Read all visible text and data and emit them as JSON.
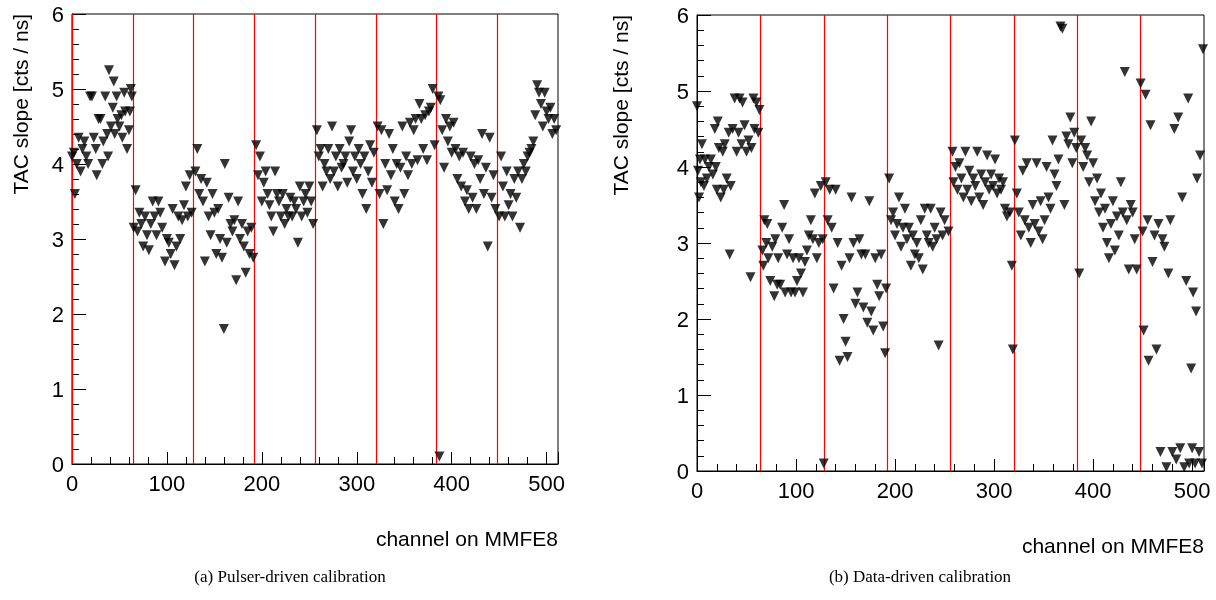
{
  "chart_data": [
    {
      "type": "scatter",
      "xlabel": "channel on MMFE8",
      "ylabel": "TAC slope [cts / ns]",
      "annotations": [
        "(a) Pulser-driven calibration"
      ],
      "color": "#000000",
      "marker": "triangle",
      "xlim": [
        0,
        512
      ],
      "ylim": [
        0,
        6
      ],
      "xticks": [
        0,
        100,
        200,
        300,
        400,
        500
      ],
      "yticks": [
        0,
        1,
        2,
        3,
        4,
        5,
        6
      ],
      "ref_lines": [
        {
          "axis": "x",
          "value": 0,
          "color": "#ff0000"
        },
        {
          "axis": "x",
          "value": 64,
          "color": "#ff0000"
        },
        {
          "axis": "x",
          "value": 128,
          "color": "#ff0000"
        },
        {
          "axis": "x",
          "value": 192,
          "color": "#ff0000"
        },
        {
          "axis": "x",
          "value": 256,
          "color": "#ff0000"
        },
        {
          "axis": "x",
          "value": 320,
          "color": "#ff0000"
        },
        {
          "axis": "x",
          "value": 384,
          "color": "#ff0000"
        },
        {
          "axis": "x",
          "value": 448,
          "color": "#ff0000"
        }
      ],
      "x": [
        0,
        2,
        3,
        5,
        7,
        9,
        11,
        13,
        15,
        17,
        19,
        21,
        23,
        25,
        26,
        28,
        30,
        32,
        33,
        35,
        37,
        38,
        39,
        41,
        43,
        44,
        45,
        47,
        48,
        50,
        52,
        53,
        55,
        56,
        58,
        60,
        61,
        62,
        63,
        65,
        67,
        69,
        71,
        73,
        75,
        77,
        79,
        81,
        83,
        85,
        87,
        89,
        91,
        93,
        95,
        98,
        100,
        102,
        104,
        106,
        108,
        110,
        112,
        114,
        116,
        118,
        120,
        122,
        124,
        126,
        130,
        132,
        134,
        136,
        138,
        140,
        142,
        144,
        146,
        148,
        150,
        152,
        154,
        156,
        158,
        160,
        161,
        163,
        165,
        167,
        169,
        171,
        173,
        175,
        177,
        179,
        181,
        183,
        185,
        187,
        189,
        191,
        194,
        196,
        198,
        200,
        202,
        204,
        206,
        208,
        210,
        212,
        214,
        216,
        218,
        220,
        222,
        224,
        226,
        228,
        230,
        232,
        234,
        236,
        238,
        240,
        242,
        244,
        246,
        248,
        250,
        252,
        254,
        258,
        260,
        262,
        264,
        266,
        268,
        270,
        272,
        274,
        276,
        278,
        280,
        282,
        284,
        286,
        288,
        290,
        292,
        294,
        296,
        298,
        300,
        302,
        304,
        306,
        308,
        310,
        312,
        314,
        316,
        318,
        322,
        324,
        326,
        328,
        330,
        332,
        334,
        336,
        338,
        340,
        342,
        344,
        346,
        348,
        350,
        352,
        354,
        356,
        358,
        360,
        362,
        364,
        366,
        368,
        370,
        372,
        374,
        376,
        378,
        380,
        382,
        386,
        387,
        388,
        390,
        392,
        394,
        396,
        398,
        400,
        402,
        404,
        406,
        408,
        410,
        412,
        414,
        416,
        418,
        420,
        422,
        424,
        426,
        428,
        430,
        432,
        434,
        436,
        438,
        440,
        442,
        444,
        446,
        450,
        452,
        454,
        456,
        458,
        460,
        462,
        464,
        466,
        468,
        470,
        472,
        474,
        476,
        478,
        480,
        482,
        484,
        486,
        488,
        490,
        492,
        494,
        496,
        498,
        500,
        502,
        504,
        506,
        508,
        510
      ],
      "values": [
        4.1,
        4.15,
        3.6,
        4.0,
        4.35,
        3.9,
        4.2,
        4.3,
        4.1,
        4.0,
        4.9,
        4.9,
        4.35,
        4.2,
        3.85,
        4.6,
        4.6,
        4.0,
        4.3,
        4.9,
        4.4,
        4.1,
        5.25,
        4.5,
        4.75,
        5.1,
        4.4,
        4.9,
        4.6,
        4.5,
        4.65,
        4.35,
        4.95,
        4.7,
        4.2,
        4.45,
        4.7,
        5.0,
        4.9,
        3.15,
        3.65,
        3.1,
        3.35,
        3.2,
        2.9,
        3.3,
        3.05,
        2.85,
        3.2,
        3.5,
        3.3,
        3.05,
        3.5,
        3.35,
        3.15,
        2.7,
        3.0,
        2.95,
        2.8,
        3.4,
        2.65,
        2.9,
        3.3,
        3.0,
        3.25,
        3.45,
        3.7,
        3.3,
        3.85,
        3.35,
        3.9,
        4.2,
        3.6,
        3.8,
        3.5,
        2.7,
        3.75,
        3.3,
        3.05,
        3.6,
        3.35,
        2.8,
        3.4,
        3.0,
        2.75,
        1.8,
        4.0,
        2.95,
        3.55,
        3.2,
        3.1,
        3.25,
        2.45,
        3.5,
        3.0,
        3.2,
        2.9,
        2.55,
        3.1,
        2.8,
        3.15,
        2.75,
        4.25,
        3.85,
        4.1,
        3.5,
        3.75,
        3.9,
        3.6,
        3.45,
        3.3,
        3.1,
        3.9,
        3.6,
        3.5,
        3.3,
        3.6,
        3.2,
        3.4,
        3.3,
        3.55,
        3.3,
        3.5,
        3.4,
        2.95,
        3.7,
        3.3,
        3.5,
        3.6,
        3.35,
        3.7,
        3.5,
        3.2,
        4.45,
        4.1,
        4.2,
        3.7,
        4.0,
        3.9,
        4.2,
        3.8,
        4.5,
        3.9,
        4.1,
        3.7,
        4.2,
        3.95,
        4.0,
        4.1,
        3.75,
        4.3,
        4.45,
        3.9,
        4.1,
        3.8,
        4.2,
        4.0,
        3.6,
        4.1,
        3.4,
        3.9,
        4.25,
        3.75,
        4.15,
        4.5,
        3.6,
        4.45,
        3.2,
        4.0,
        3.65,
        4.4,
        3.85,
        4.2,
        3.5,
        4.0,
        3.4,
        3.95,
        4.5,
        3.6,
        4.1,
        3.85,
        4.55,
        4.0,
        4.45,
        4.6,
        4.05,
        4.8,
        4.6,
        4.2,
        4.65,
        4.05,
        4.7,
        4.75,
        5.0,
        4.25,
        4.9,
        0.1,
        4.85,
        4.45,
        3.95,
        4.6,
        4.3,
        4.5,
        4.15,
        4.55,
        4.2,
        3.8,
        4.1,
        3.7,
        4.15,
        3.5,
        3.65,
        3.4,
        4.1,
        3.55,
        4.0,
        3.4,
        4.05,
        3.8,
        4.4,
        3.6,
        3.95,
        2.9,
        4.35,
        3.55,
        3.85,
        3.4,
        3.3,
        4.1,
        3.7,
        3.3,
        3.9,
        3.45,
        3.6,
        3.3,
        3.8,
        3.55,
        3.9,
        3.15,
        3.8,
        4.0,
        3.9,
        4.1,
        4.15,
        4.2,
        4.3,
        4.65,
        5.05,
        4.95,
        4.8,
        4.5,
        4.95,
        4.7,
        4.6,
        4.75,
        4.4,
        4.6,
        4.45
      ]
    },
    {
      "type": "scatter",
      "xlabel": "channel on MMFE8",
      "ylabel": "TAC slope [cts / ns]",
      "annotations": [
        "(b) Data-driven calibration"
      ],
      "color": "#000000",
      "marker": "triangle",
      "xlim": [
        0,
        512
      ],
      "ylim": [
        0,
        6
      ],
      "xticks": [
        0,
        100,
        200,
        300,
        400,
        500
      ],
      "yticks": [
        0,
        1,
        2,
        3,
        4,
        5,
        6
      ],
      "ref_lines": [
        {
          "axis": "x",
          "value": 64,
          "color": "#ff0000"
        },
        {
          "axis": "x",
          "value": 128,
          "color": "#ff0000"
        },
        {
          "axis": "x",
          "value": 192,
          "color": "#ff0000"
        },
        {
          "axis": "x",
          "value": 256,
          "color": "#ff0000"
        },
        {
          "axis": "x",
          "value": 320,
          "color": "#ff0000"
        },
        {
          "axis": "x",
          "value": 384,
          "color": "#ff0000"
        },
        {
          "axis": "x",
          "value": 448,
          "color": "#ff0000"
        }
      ],
      "x": [
        0,
        1,
        2,
        3,
        4,
        5,
        7,
        8,
        10,
        12,
        14,
        16,
        18,
        19,
        20,
        21,
        22,
        24,
        26,
        27,
        28,
        30,
        32,
        33,
        34,
        36,
        38,
        40,
        42,
        43,
        45,
        46,
        48,
        50,
        52,
        54,
        55,
        57,
        58,
        60,
        62,
        63,
        66,
        67,
        68,
        70,
        71,
        72,
        74,
        76,
        78,
        79,
        81,
        82,
        84,
        86,
        88,
        89,
        91,
        93,
        95,
        97,
        99,
        101,
        103,
        105,
        107,
        109,
        111,
        113,
        115,
        117,
        119,
        121,
        123,
        125,
        127,
        128,
        130,
        132,
        134,
        136,
        138,
        140,
        142,
        144,
        146,
        148,
        150,
        152,
        154,
        156,
        158,
        160,
        162,
        164,
        166,
        168,
        170,
        172,
        174,
        176,
        178,
        180,
        182,
        184,
        186,
        188,
        190,
        191,
        194,
        196,
        198,
        200,
        202,
        204,
        206,
        208,
        210,
        212,
        214,
        216,
        218,
        220,
        222,
        224,
        226,
        228,
        230,
        232,
        234,
        236,
        238,
        240,
        242,
        244,
        246,
        248,
        250,
        254,
        258,
        259,
        261,
        263,
        265,
        267,
        269,
        271,
        273,
        275,
        277,
        279,
        281,
        283,
        285,
        287,
        289,
        291,
        293,
        295,
        297,
        299,
        301,
        303,
        305,
        307,
        309,
        311,
        313,
        316,
        318,
        319,
        321,
        323,
        325,
        327,
        329,
        331,
        333,
        335,
        337,
        339,
        341,
        343,
        345,
        347,
        349,
        351,
        353,
        355,
        357,
        359,
        361,
        363,
        365,
        367,
        369,
        371,
        373,
        375,
        377,
        379,
        381,
        383,
        386,
        388,
        390,
        392,
        394,
        396,
        398,
        400,
        402,
        404,
        406,
        408,
        410,
        412,
        414,
        416,
        418,
        420,
        422,
        424,
        426,
        428,
        430,
        432,
        434,
        436,
        438,
        440,
        442,
        444,
        448,
        450,
        451,
        453,
        455,
        456,
        458,
        460,
        462,
        464,
        466,
        468,
        470,
        472,
        474,
        476,
        478,
        480,
        482,
        484,
        486,
        488,
        490,
        492,
        494,
        496,
        497,
        499,
        500,
        501,
        503,
        504,
        505,
        507,
        508,
        510,
        511
      ],
      "values": [
        4.8,
        3.95,
        3.6,
        4.1,
        3.8,
        4.3,
        3.75,
        4.1,
        3.85,
        4.0,
        4.1,
        3.9,
        4.5,
        4.0,
        3.7,
        4.6,
        4.25,
        3.6,
        4.2,
        3.7,
        4.3,
        3.85,
        4.45,
        2.85,
        3.75,
        4.5,
        4.9,
        4.2,
        4.45,
        4.9,
        4.3,
        4.85,
        4.55,
        4.2,
        4.35,
        2.55,
        4.25,
        4.9,
        4.5,
        4.85,
        4.45,
        4.75,
        2.9,
        2.7,
        3.3,
        3.0,
        3.25,
        2.8,
        2.5,
        2.95,
        2.3,
        3.05,
        2.45,
        2.8,
        2.45,
        3.2,
        3.5,
        2.35,
        2.85,
        3.05,
        2.35,
        2.8,
        2.35,
        2.5,
        2.8,
        2.6,
        2.35,
        2.75,
        2.9,
        3.1,
        3.3,
        3.05,
        3.65,
        2.8,
        3.0,
        3.75,
        3.05,
        0.1,
        3.8,
        3.3,
        3.7,
        3.2,
        2.4,
        3.7,
        3.0,
        1.45,
        2.7,
        2.0,
        1.7,
        1.5,
        2.8,
        3.6,
        3.0,
        2.2,
        2.35,
        3.05,
        2.85,
        2.15,
        2.85,
        1.95,
        3.55,
        2.1,
        1.85,
        2.8,
        2.45,
        2.3,
        2.85,
        1.9,
        1.55,
        2.4,
        3.85,
        3.3,
        3.4,
        3.1,
        3.25,
        3.6,
        2.95,
        3.2,
        3.45,
        3.05,
        3.2,
        2.7,
        3.1,
        2.85,
        3.0,
        2.8,
        3.3,
        2.65,
        3.45,
        3.1,
        3.0,
        3.45,
        2.95,
        3.2,
        3.05,
        1.65,
        3.4,
        3.1,
        3.3,
        3.15,
        4.2,
        3.8,
        4.0,
        3.7,
        4.05,
        3.85,
        3.6,
        4.2,
        3.7,
        3.95,
        3.55,
        3.85,
        3.75,
        4.2,
        3.6,
        3.9,
        3.5,
        3.8,
        4.15,
        3.7,
        3.9,
        3.75,
        4.1,
        3.65,
        3.85,
        3.7,
        3.8,
        3.45,
        3.35,
        3.4,
        2.7,
        1.6,
        4.35,
        3.65,
        3.4,
        3.1,
        3.95,
        3.3,
        4.05,
        3.2,
        3.0,
        3.5,
        3.25,
        4.05,
        3.15,
        3.55,
        3.05,
        3.3,
        4.0,
        3.6,
        3.45,
        4.35,
        3.9,
        3.75,
        4.1,
        5.85,
        5.82,
        3.5,
        4.4,
        4.3,
        4.65,
        4.05,
        4.45,
        4.25,
        2.6,
        4.35,
        4.0,
        4.25,
        4.15,
        3.8,
        4.6,
        4.05,
        3.55,
        3.85,
        3.4,
        3.65,
        3.2,
        3.45,
        3.0,
        2.8,
        3.25,
        3.55,
        2.9,
        3.35,
        3.1,
        3.8,
        3.4,
        5.25,
        3.3,
        2.65,
        3.5,
        3.4,
        3.05,
        2.65,
        5.1,
        3.15,
        1.85,
        4.95,
        3.3,
        1.45,
        4.55,
        2.75,
        3.1,
        1.6,
        3.25,
        0.25,
        3.05,
        2.95,
        0.05,
        2.6,
        3.3,
        0.25,
        4.5,
        0.15,
        4.65,
        0.3,
        3.6,
        0.05,
        2.5,
        4.9,
        0.1,
        1.35,
        0.3,
        2.35,
        0.1,
        2.1,
        3.85,
        0.25,
        4.15,
        0.1,
        5.55
      ]
    }
  ]
}
